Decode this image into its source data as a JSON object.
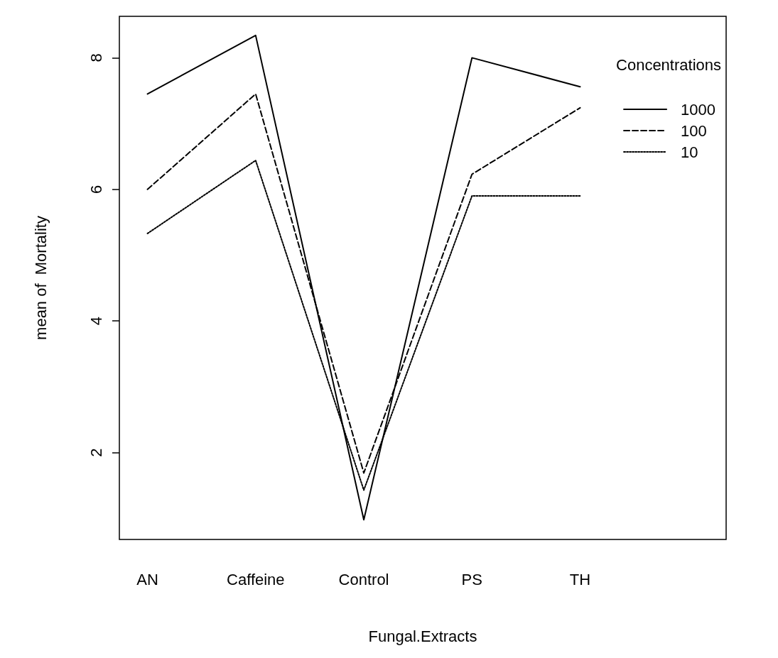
{
  "chart_data": {
    "type": "line",
    "xlabel": "Fungal.Extracts",
    "ylabel": "mean of  Mortality",
    "legend_title": "Concentrations",
    "categories": [
      "AN",
      "Caffeine",
      "Control",
      "PS",
      "TH"
    ],
    "series": [
      {
        "name": "1000",
        "color": "#000000",
        "line_style": "solid",
        "values": [
          7.45,
          8.34,
          0.98,
          8.0,
          7.56
        ]
      },
      {
        "name": "100",
        "color": "#000000",
        "line_style": "dashed",
        "values": [
          6.0,
          7.45,
          1.69,
          6.23,
          7.24
        ]
      },
      {
        "name": "10",
        "color": "#000000",
        "line_style": "dotted",
        "values": [
          5.33,
          6.44,
          1.43,
          5.9,
          5.9
        ]
      }
    ],
    "ylim": [
      0.68,
      8.63
    ],
    "yticks": [
      2,
      4,
      6,
      8
    ],
    "grid": false,
    "legend": "top right",
    "marker": "none"
  }
}
